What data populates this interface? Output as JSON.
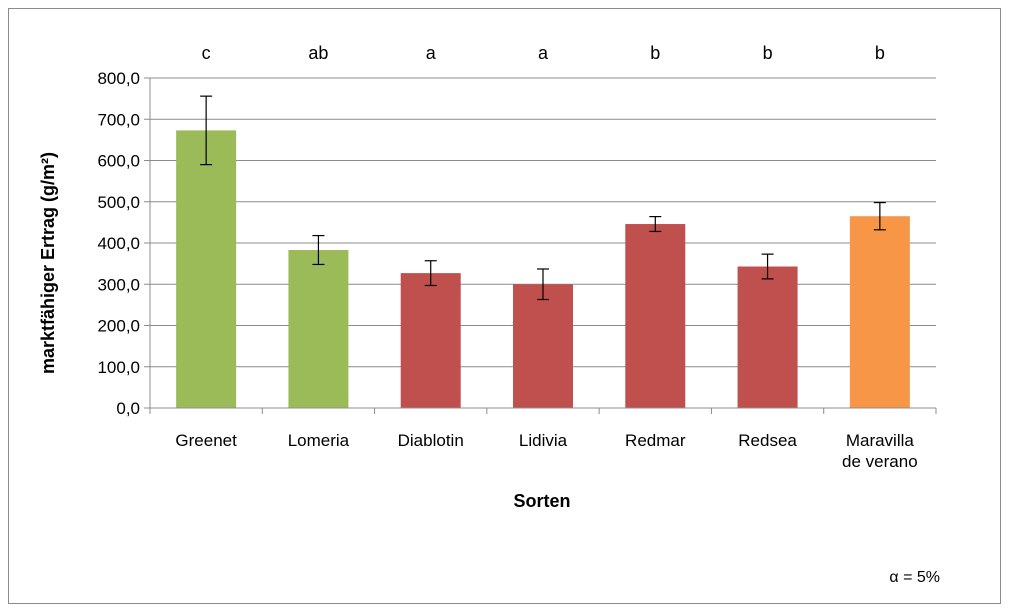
{
  "chart_data": {
    "type": "bar",
    "xlabel": "Sorten",
    "ylabel": "marktfähiger Ertrag (g/m²)",
    "ylim": [
      0,
      800
    ],
    "yticks": [
      "0,0",
      "100,0",
      "200,0",
      "300,0",
      "400,0",
      "500,0",
      "600,0",
      "700,0",
      "800,0"
    ],
    "grid": true,
    "categories": [
      [
        "Greenet"
      ],
      [
        "Lomeria"
      ],
      [
        "Diablotin"
      ],
      [
        "Lidivia"
      ],
      [
        "Redmar"
      ],
      [
        "Redsea"
      ],
      [
        "Maravilla",
        "de verano"
      ]
    ],
    "values": [
      673,
      383,
      327,
      300,
      446,
      343,
      465
    ],
    "errors": [
      83,
      35,
      30,
      37,
      18,
      30,
      33
    ],
    "significance_letters": [
      "c",
      "ab",
      "a",
      "a",
      "b",
      "b",
      "b"
    ],
    "bar_colors": [
      "#9bbb59",
      "#9bbb59",
      "#c0504d",
      "#c0504d",
      "#c0504d",
      "#c0504d",
      "#f79646"
    ],
    "annotation": "α = 5%"
  }
}
